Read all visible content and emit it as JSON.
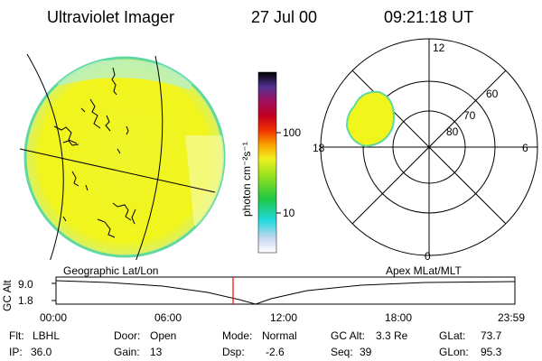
{
  "header": {
    "title": "Ultraviolet Imager",
    "date": "27 Jul 00",
    "time": "09:21:18 UT"
  },
  "colorbar": {
    "unit_label": "photon cm⁻²s⁻¹",
    "ticks": [
      {
        "label": "100",
        "value": 100
      },
      {
        "label": "10",
        "value": 10
      }
    ]
  },
  "polar_plot": {
    "mlt_labels": {
      "top": "12",
      "left": "18",
      "right": "6",
      "bottom": "0"
    },
    "lat_labels": [
      "60",
      "70",
      "80"
    ],
    "lat_rings": [
      60,
      70,
      80
    ]
  },
  "timeline": {
    "left_label": "Geographic Lat/Lon",
    "right_label": "Apex MLat/MLT",
    "axis_label": "GC Alt",
    "y_ticks": [
      "9.0",
      "1.8"
    ],
    "x_ticks": [
      "00:00",
      "06:00",
      "12:00",
      "18:00",
      "23:59"
    ],
    "current_time": "09:21:18",
    "marker_color": "#ff0000"
  },
  "info": {
    "row1": [
      {
        "key": "Flt:",
        "value": "LBHL"
      },
      {
        "key": "Door:",
        "value": "Open"
      },
      {
        "key": "Mode:",
        "value": "Normal"
      },
      {
        "key": "GC Alt:",
        "value": "3.3 Re"
      },
      {
        "key": "GLat:",
        "value": "73.7"
      }
    ],
    "row2": [
      {
        "key": "IP:",
        "value": "36.0"
      },
      {
        "key": "Gain:",
        "value": "13"
      },
      {
        "key": "Dsp:",
        "value": "-2.6"
      },
      {
        "key": "Seq:",
        "value": "39"
      },
      {
        "key": "GLon:",
        "value": "95.3"
      }
    ]
  },
  "colors": {
    "earth_fill": "#f2f51c",
    "earth_edge": "#5fd9a0",
    "scale_top": "#000000",
    "scale_bottom": "#ffffff"
  }
}
